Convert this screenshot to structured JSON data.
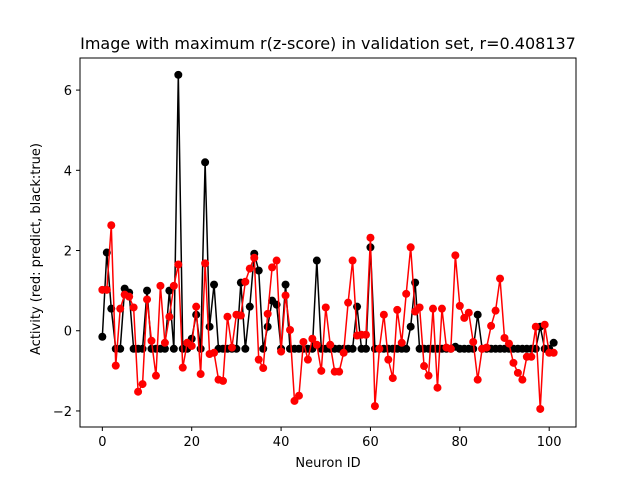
{
  "chart_data": {
    "type": "line",
    "title": "Image with maximum r(z-score) in validation set, r=0.408137",
    "xlabel": "Neuron ID",
    "ylabel": "Activity (red: predict, black:true)",
    "xlim": [
      -5,
      106
    ],
    "ylim": [
      -2.4,
      6.8
    ],
    "xticks": [
      0,
      20,
      40,
      60,
      80,
      100
    ],
    "yticks": [
      -2,
      0,
      2,
      4,
      6
    ],
    "grid": false,
    "legend": "none",
    "series": [
      {
        "color": "#000000",
        "marker": "circle",
        "x": [
          0,
          1,
          2,
          3,
          4,
          5,
          6,
          7,
          8,
          9,
          10,
          11,
          12,
          13,
          14,
          15,
          16,
          17,
          18,
          19,
          20,
          21,
          22,
          23,
          24,
          25,
          26,
          27,
          28,
          29,
          30,
          31,
          32,
          33,
          34,
          35,
          36,
          37,
          38,
          39,
          40,
          41,
          42,
          43,
          44,
          45,
          46,
          47,
          48,
          49,
          50,
          51,
          52,
          53,
          54,
          55,
          56,
          57,
          58,
          59,
          60,
          61,
          62,
          63,
          64,
          65,
          66,
          67,
          68,
          69,
          70,
          71,
          72,
          73,
          74,
          75,
          76,
          77,
          78,
          79,
          80,
          81,
          82,
          83,
          84,
          85,
          86,
          87,
          88,
          89,
          90,
          91,
          92,
          93,
          94,
          95,
          96,
          97,
          98,
          99,
          100,
          101
        ],
        "values": [
          -0.15,
          1.95,
          0.55,
          -0.45,
          -0.45,
          1.05,
          0.95,
          -0.45,
          -0.45,
          -0.45,
          1.0,
          -0.45,
          -0.45,
          -0.45,
          -0.45,
          1.0,
          -0.45,
          6.38,
          -0.45,
          -0.45,
          -0.2,
          0.4,
          -0.45,
          4.2,
          0.1,
          1.15,
          -0.45,
          -0.45,
          -0.45,
          -0.45,
          -0.45,
          1.2,
          -0.45,
          0.6,
          1.92,
          1.5,
          -0.45,
          0.1,
          0.75,
          0.65,
          -0.45,
          1.15,
          -0.45,
          -0.45,
          -0.45,
          -0.45,
          -0.45,
          -0.45,
          1.75,
          -0.45,
          -0.45,
          -0.45,
          -0.45,
          -0.45,
          -0.45,
          -0.45,
          -0.45,
          0.6,
          -0.45,
          -0.45,
          2.08,
          -0.45,
          -0.45,
          -0.45,
          -0.45,
          -0.45,
          -0.45,
          -0.45,
          -0.45,
          0.1,
          1.2,
          -0.45,
          -0.45,
          -0.45,
          -0.45,
          -0.45,
          -0.45,
          -0.45,
          -0.45,
          -0.4,
          -0.45,
          -0.45,
          -0.45,
          -0.45,
          0.4,
          -0.45,
          -0.45,
          -0.45,
          -0.45,
          -0.45,
          -0.45,
          -0.45,
          -0.45,
          -0.45,
          -0.45,
          -0.45,
          -0.45,
          -0.45,
          0.1,
          -0.45,
          -0.45,
          -0.3
        ]
      },
      {
        "color": "#ff0000",
        "marker": "circle",
        "x": [
          0,
          1,
          2,
          3,
          4,
          5,
          6,
          7,
          8,
          9,
          10,
          11,
          12,
          13,
          14,
          15,
          16,
          17,
          18,
          19,
          20,
          21,
          22,
          23,
          24,
          25,
          26,
          27,
          28,
          29,
          30,
          31,
          32,
          33,
          34,
          35,
          36,
          37,
          38,
          39,
          40,
          41,
          42,
          43,
          44,
          45,
          46,
          47,
          48,
          49,
          50,
          51,
          52,
          53,
          54,
          55,
          56,
          57,
          58,
          59,
          60,
          61,
          62,
          63,
          64,
          65,
          66,
          67,
          68,
          69,
          70,
          71,
          72,
          73,
          74,
          75,
          76,
          77,
          78,
          79,
          80,
          81,
          82,
          83,
          84,
          85,
          86,
          87,
          88,
          89,
          90,
          91,
          92,
          93,
          94,
          95,
          96,
          97,
          98,
          99,
          100,
          101
        ],
        "values": [
          1.02,
          1.02,
          2.63,
          -0.87,
          0.55,
          0.9,
          0.85,
          0.58,
          -1.52,
          -1.33,
          0.78,
          -0.25,
          -1.12,
          1.12,
          -0.3,
          0.35,
          1.12,
          1.65,
          -0.92,
          -0.3,
          -0.38,
          0.6,
          -1.08,
          1.68,
          -0.58,
          -0.55,
          -1.22,
          -1.25,
          0.35,
          -0.42,
          0.4,
          0.38,
          1.22,
          1.55,
          1.82,
          -0.72,
          -0.93,
          0.42,
          1.58,
          1.75,
          -0.52,
          0.88,
          0.02,
          -1.75,
          -1.62,
          -0.28,
          -0.72,
          -0.2,
          -0.35,
          -1.0,
          0.58,
          -0.35,
          -1.02,
          -1.02,
          -0.55,
          0.7,
          1.75,
          -0.12,
          -0.1,
          -0.1,
          2.32,
          -1.88,
          -0.45,
          0.4,
          -0.72,
          -1.18,
          0.52,
          -0.3,
          0.92,
          2.08,
          0.48,
          0.58,
          -0.88,
          -1.12,
          0.55,
          -1.42,
          0.55,
          -0.42,
          -0.45,
          1.88,
          0.62,
          0.32,
          0.45,
          -0.28,
          -1.22,
          -0.45,
          -0.42,
          0.12,
          0.5,
          1.3,
          -0.18,
          -0.32,
          -0.8,
          -1.05,
          -1.22,
          -0.65,
          -0.65,
          0.1,
          -1.95,
          0.15,
          -0.55,
          -0.55
        ]
      }
    ]
  }
}
